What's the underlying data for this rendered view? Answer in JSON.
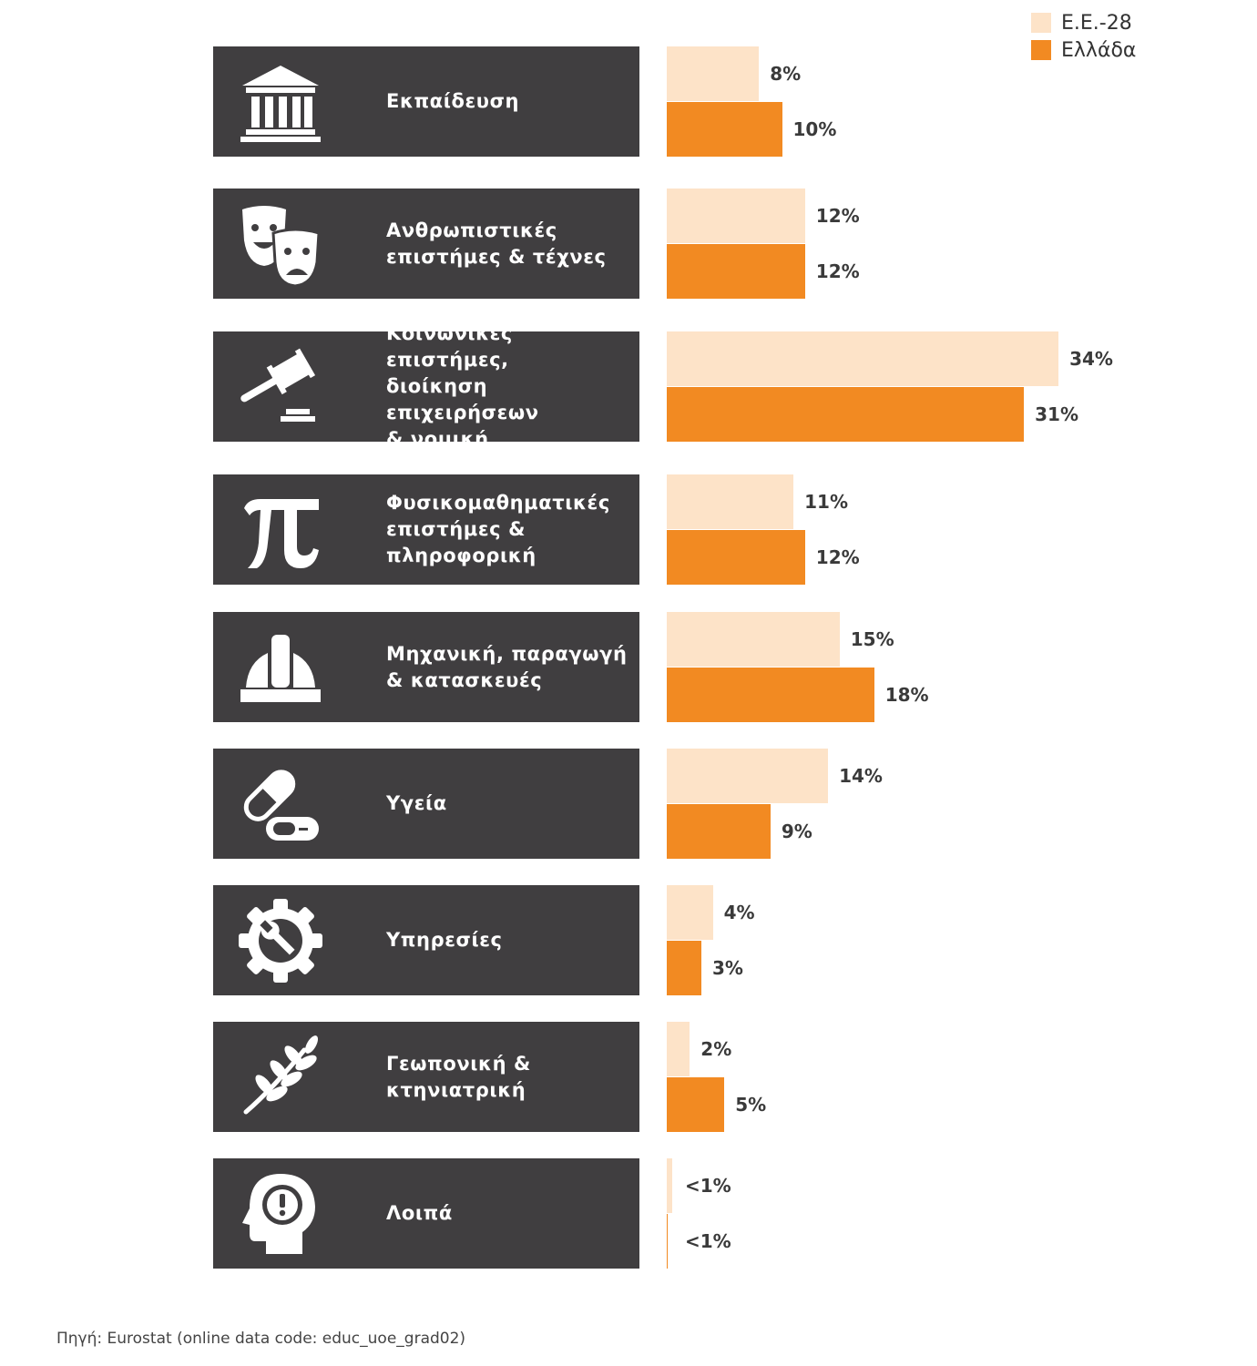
{
  "colors": {
    "eu": "#fde3c8",
    "greece": "#f28a22",
    "box": "#403e40"
  },
  "legend": [
    {
      "label": "Ε.Ε.-28",
      "color": "#fde3c8"
    },
    {
      "label": "Ελλάδα",
      "color": "#f28a22"
    }
  ],
  "chart_data": {
    "type": "bar",
    "orientation": "horizontal",
    "categories": [
      "Εκπαίδευση",
      "Ανθρωπιστικές\nεπιστήμες & τέχνες",
      "Κοινωνικές επιστήμες,\nδιοίκηση επιχειρήσεων\n& νομική",
      "Φυσικομαθηματικές\nεπιστήμες &\nπληροφορική",
      "Μηχανική, παραγωγή\n& κατασκευές",
      "Υγεία",
      "Υπηρεσίες",
      "Γεωπονική &\nκτηνιατρική",
      "Λοιπά"
    ],
    "icons": [
      "building-columns-icon",
      "theater-masks-icon",
      "gavel-icon",
      "pi-icon",
      "hard-hat-icon",
      "pills-icon",
      "gear-wrench-icon",
      "wheat-icon",
      "head-exclamation-icon"
    ],
    "series": [
      {
        "name": "Ε.Ε.-28",
        "values": [
          8,
          12,
          34,
          11,
          15,
          14,
          4,
          2,
          0.5
        ],
        "labels": [
          "8%",
          "12%",
          "34%",
          "11%",
          "15%",
          "14%",
          "4%",
          "2%",
          "<1%"
        ]
      },
      {
        "name": "Ελλάδα",
        "values": [
          10,
          12,
          31,
          12,
          18,
          9,
          3,
          5,
          0.1
        ],
        "labels": [
          "10%",
          "12%",
          "31%",
          "12%",
          "18%",
          "9%",
          "3%",
          "5%",
          "<1%"
        ]
      }
    ],
    "legend_position": "top-right",
    "grid": false
  },
  "source": "Πηγή: Eurostat (online data code: educ_uoe_grad02)"
}
